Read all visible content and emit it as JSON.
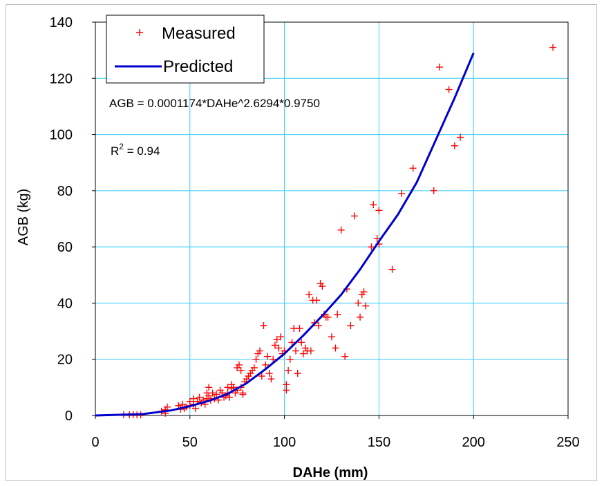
{
  "chart_data": {
    "type": "scatter",
    "xlabel": "DAHe (mm)",
    "ylabel": "AGB (kg)",
    "xlim": [
      0,
      250
    ],
    "ylim": [
      0,
      140
    ],
    "x_ticks": [
      "0",
      "50",
      "100",
      "150",
      "200",
      "250"
    ],
    "y_ticks": [
      "0",
      "20",
      "40",
      "60",
      "80",
      "100",
      "120",
      "140"
    ],
    "grid": true,
    "legend": "top-left",
    "annotations": {
      "equation": "AGB = 0.0001174*DAHe^2.6294*0.9750",
      "r2_prefix": "R",
      "r2_sup": "2",
      "r2_value": " = 0.94"
    },
    "series": [
      {
        "name": "Measured",
        "marker": "+",
        "color": "#ff0000",
        "points": [
          [
            15,
            0.3
          ],
          [
            18,
            0.2
          ],
          [
            20,
            0.3
          ],
          [
            22,
            0.2
          ],
          [
            24,
            0.2
          ],
          [
            35,
            1.5
          ],
          [
            37,
            2
          ],
          [
            37,
            0.8
          ],
          [
            38,
            3
          ],
          [
            44,
            3.5
          ],
          [
            45,
            2.2
          ],
          [
            46,
            4
          ],
          [
            47,
            2.5
          ],
          [
            48,
            3
          ],
          [
            50,
            5
          ],
          [
            50,
            3.5
          ],
          [
            52,
            6
          ],
          [
            52,
            4
          ],
          [
            53,
            2.5
          ],
          [
            54,
            5
          ],
          [
            55,
            6.5
          ],
          [
            56,
            4.5
          ],
          [
            57,
            5.5
          ],
          [
            58,
            4
          ],
          [
            59,
            6
          ],
          [
            59,
            8
          ],
          [
            60,
            10
          ],
          [
            60,
            7
          ],
          [
            61,
            5.5
          ],
          [
            62,
            8
          ],
          [
            63,
            6
          ],
          [
            64,
            7.5
          ],
          [
            65,
            5.5
          ],
          [
            66,
            9
          ],
          [
            67,
            8
          ],
          [
            68,
            6.5
          ],
          [
            69,
            7
          ],
          [
            70,
            10
          ],
          [
            70,
            8
          ],
          [
            71,
            6.5
          ],
          [
            72,
            9.5
          ],
          [
            72,
            11
          ],
          [
            73,
            10
          ],
          [
            74,
            8
          ],
          [
            75,
            17
          ],
          [
            75,
            9
          ],
          [
            76,
            18
          ],
          [
            77,
            10
          ],
          [
            77,
            16
          ],
          [
            78,
            8
          ],
          [
            78,
            7.5
          ],
          [
            79,
            12
          ],
          [
            80,
            13
          ],
          [
            81,
            14
          ],
          [
            82,
            15
          ],
          [
            83,
            16
          ],
          [
            84,
            17
          ],
          [
            85,
            20
          ],
          [
            86,
            22
          ],
          [
            87,
            23
          ],
          [
            88,
            14
          ],
          [
            89,
            32
          ],
          [
            90,
            18
          ],
          [
            91,
            21
          ],
          [
            92,
            15
          ],
          [
            93,
            13
          ],
          [
            94,
            20
          ],
          [
            95,
            25
          ],
          [
            96,
            27
          ],
          [
            97,
            24
          ],
          [
            98,
            28
          ],
          [
            99,
            22
          ],
          [
            100,
            23
          ],
          [
            101,
            9
          ],
          [
            101,
            11
          ],
          [
            102,
            16
          ],
          [
            103,
            20
          ],
          [
            104,
            26
          ],
          [
            105,
            31
          ],
          [
            106,
            23
          ],
          [
            107,
            15
          ],
          [
            108,
            31
          ],
          [
            109,
            26
          ],
          [
            110,
            22
          ],
          [
            111,
            24
          ],
          [
            112,
            23
          ],
          [
            113,
            43
          ],
          [
            114,
            23
          ],
          [
            115,
            41
          ],
          [
            116,
            33
          ],
          [
            117,
            41
          ],
          [
            118,
            32
          ],
          [
            119,
            47
          ],
          [
            120,
            46
          ],
          [
            121,
            36
          ],
          [
            122,
            35
          ],
          [
            123,
            35
          ],
          [
            125,
            28
          ],
          [
            127,
            24
          ],
          [
            128,
            36
          ],
          [
            130,
            66
          ],
          [
            132,
            21
          ],
          [
            133,
            45
          ],
          [
            135,
            32
          ],
          [
            137,
            71
          ],
          [
            139,
            40
          ],
          [
            140,
            35
          ],
          [
            141,
            43
          ],
          [
            142,
            44
          ],
          [
            143,
            39
          ],
          [
            146,
            60
          ],
          [
            147,
            75
          ],
          [
            149,
            63
          ],
          [
            150,
            73
          ],
          [
            150,
            61
          ],
          [
            157,
            52
          ],
          [
            162,
            79
          ],
          [
            168,
            88
          ],
          [
            179,
            80
          ],
          [
            182,
            124
          ],
          [
            187,
            116
          ],
          [
            190,
            96
          ],
          [
            193,
            99
          ],
          [
            242,
            131
          ]
        ]
      },
      {
        "name": "Predicted",
        "color": "#0000cc",
        "points": [
          [
            0,
            0
          ],
          [
            25,
            0.5
          ],
          [
            40,
            1.8
          ],
          [
            50,
            3.3
          ],
          [
            60,
            5.2
          ],
          [
            70,
            7.7
          ],
          [
            80,
            11.5
          ],
          [
            90,
            16.5
          ],
          [
            100,
            22
          ],
          [
            110,
            28.5
          ],
          [
            120,
            35.5
          ],
          [
            130,
            43
          ],
          [
            140,
            52
          ],
          [
            150,
            62
          ],
          [
            160,
            71.5
          ],
          [
            170,
            83
          ],
          [
            180,
            98
          ],
          [
            190,
            113
          ],
          [
            200,
            129
          ]
        ]
      }
    ]
  }
}
